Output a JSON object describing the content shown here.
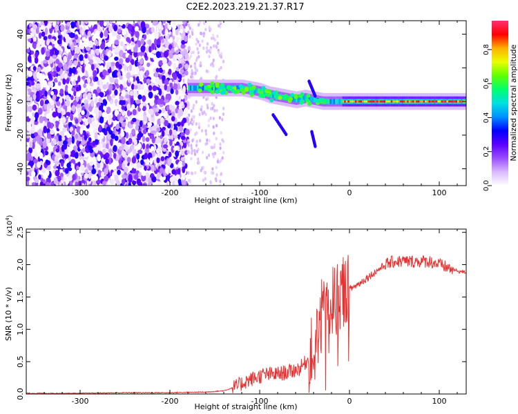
{
  "title": "C2E2.2023.219.21.37.R17",
  "chart_data": [
    {
      "type": "heatmap",
      "xlabel": "Height of straight line (km)",
      "ylabel": "Frequency (Hz)",
      "xlim": [
        -360,
        130
      ],
      "ylim": [
        -50,
        48
      ],
      "xticks": [
        -300,
        -200,
        -100,
        0,
        100
      ],
      "yticks": [
        -40,
        -20,
        0,
        20,
        40
      ],
      "colorbar": {
        "label": "Normalized spectral amplitude",
        "range": [
          0.0,
          0.97
        ],
        "ticks": [
          0.0,
          0.2,
          0.4,
          0.6,
          0.8
        ],
        "colors": [
          "#ffffff",
          "#d9b8ff",
          "#9a4dff",
          "#5a00ff",
          "#0000ff",
          "#0090ff",
          "#00e0e0",
          "#00ff70",
          "#60ff00",
          "#e8ff00",
          "#ffb000",
          "#ff0000",
          "#ff3070"
        ]
      },
      "ridge": {
        "x": [
          -180,
          -160,
          -140,
          -120,
          -100,
          -90,
          -80,
          -70,
          -60,
          -50,
          -40,
          -30,
          -20,
          -10,
          0,
          20,
          40,
          60,
          80,
          100,
          130
        ],
        "y": [
          8,
          8,
          8,
          8,
          6,
          4,
          3,
          2,
          1,
          2,
          1,
          0,
          0,
          0,
          0,
          0,
          0,
          0,
          0,
          0,
          0
        ]
      }
    },
    {
      "type": "line",
      "xlabel": "Height of straight line (km)",
      "ylabel": "SNR (10 * v/v)",
      "yunit": "(x10^4)",
      "xlim": [
        -360,
        130
      ],
      "ylim": [
        0,
        2.55
      ],
      "xticks": [
        -300,
        -200,
        -100,
        0,
        100
      ],
      "yticks": [
        0.0,
        0.5,
        1.0,
        1.5,
        2.0,
        2.5
      ],
      "series": [
        {
          "color": "#e83030",
          "x": [
            -360,
            -300,
            -250,
            -200,
            -160,
            -140,
            -125,
            -115,
            -105,
            -95,
            -85,
            -75,
            -65,
            -55,
            -45,
            -38,
            -32,
            -28,
            -24,
            -20,
            -15,
            -10,
            -5,
            0,
            10,
            20,
            30,
            40,
            50,
            60,
            70,
            80,
            90,
            100,
            110,
            120,
            130
          ],
          "y": [
            0.01,
            0.01,
            0.02,
            0.02,
            0.03,
            0.05,
            0.12,
            0.2,
            0.25,
            0.3,
            0.3,
            0.32,
            0.35,
            0.4,
            0.55,
            0.8,
            1.1,
            1.6,
            1.3,
            1.4,
            1.5,
            1.55,
            1.6,
            1.62,
            1.7,
            1.8,
            1.9,
            2.0,
            2.05,
            2.05,
            2.05,
            2.05,
            2.05,
            2.0,
            1.95,
            1.9,
            1.88
          ]
        }
      ]
    }
  ]
}
